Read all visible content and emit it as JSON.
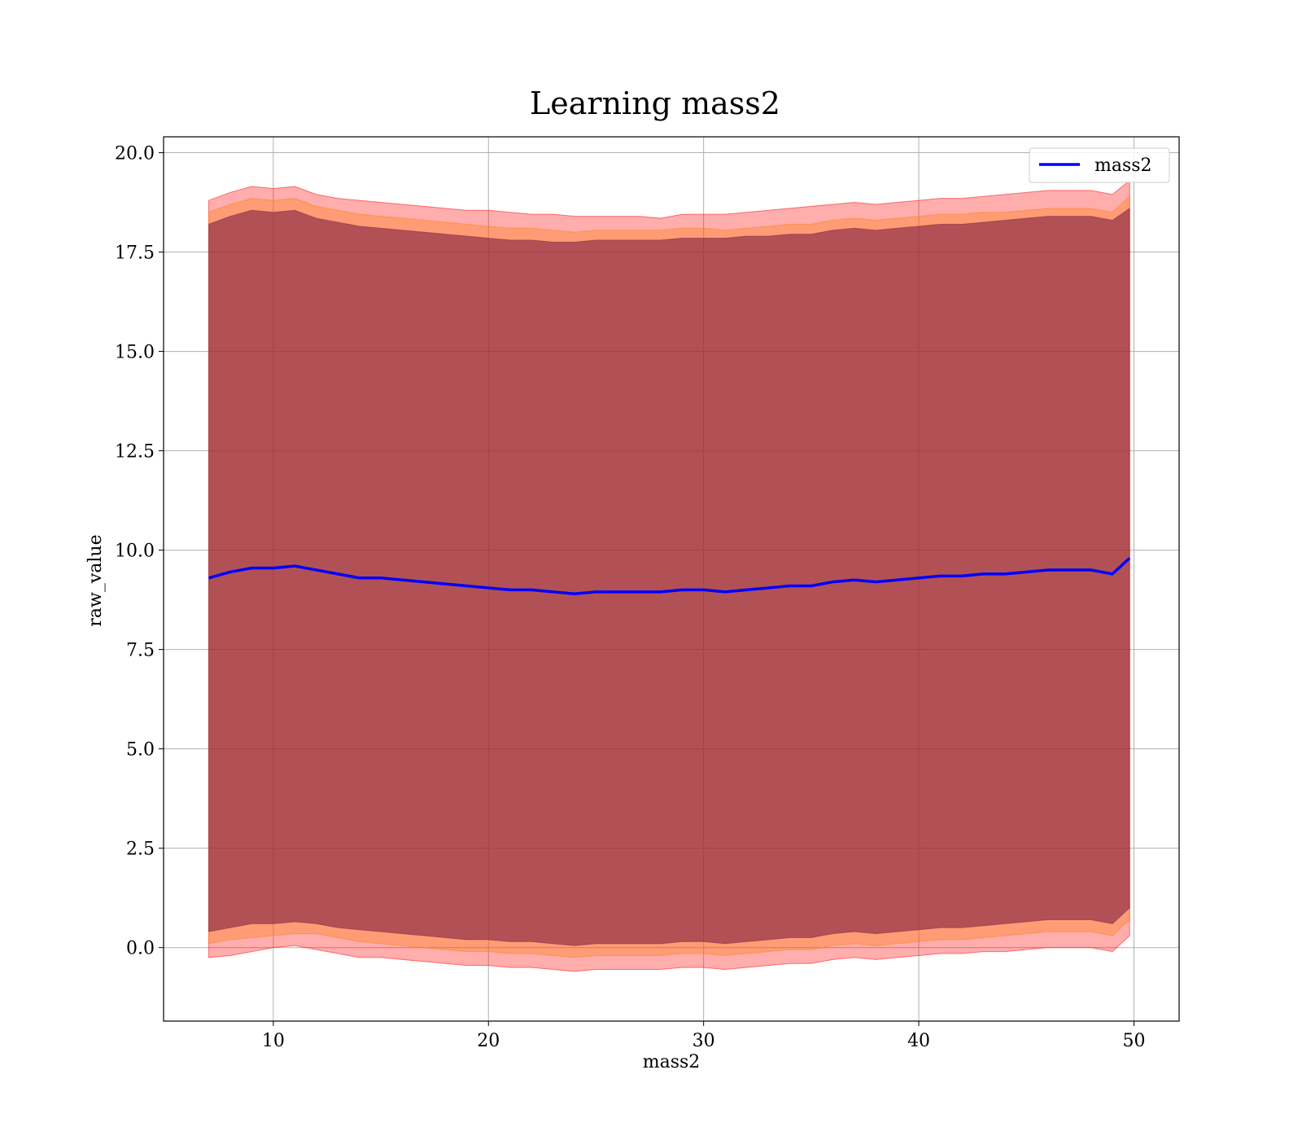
{
  "chart_data": {
    "type": "line",
    "title": "Learning mass2",
    "xlabel": "mass2",
    "ylabel": "raw_value",
    "xlim": [
      4.9,
      52.1
    ],
    "ylim": [
      -1.85,
      20.4
    ],
    "xticks": [
      10,
      20,
      30,
      40,
      50
    ],
    "xtick_labels": [
      "10",
      "20",
      "30",
      "40",
      "50"
    ],
    "yticks": [
      0,
      2.5,
      5,
      7.5,
      10,
      12.5,
      15,
      17.5,
      20
    ],
    "ytick_labels": [
      "0.0",
      "2.5",
      "5.0",
      "7.5",
      "10.0",
      "12.5",
      "15.0",
      "17.5",
      "20.0"
    ],
    "grid": true,
    "legend": {
      "position": "top-right",
      "entries": [
        "mass2"
      ]
    },
    "colors": {
      "line": "#0000ff",
      "band_outer": "#ff0000",
      "band_middle": "#ff7f0e",
      "band_inner": "#7f2040"
    },
    "series": [
      {
        "name": "mass2",
        "x": [
          7,
          8,
          9,
          10,
          11,
          12,
          13,
          14,
          15,
          16,
          17,
          18,
          19,
          20,
          21,
          22,
          23,
          24,
          25,
          26,
          27,
          28,
          29,
          30,
          31,
          32,
          33,
          34,
          35,
          36,
          37,
          38,
          39,
          40,
          41,
          42,
          43,
          44,
          45,
          46,
          47,
          48,
          49,
          49.8
        ],
        "values": [
          9.3,
          9.45,
          9.55,
          9.55,
          9.6,
          9.5,
          9.4,
          9.3,
          9.3,
          9.25,
          9.2,
          9.15,
          9.1,
          9.05,
          9.0,
          9.0,
          8.95,
          8.9,
          8.95,
          8.95,
          8.95,
          8.95,
          9.0,
          9.0,
          8.95,
          9.0,
          9.05,
          9.1,
          9.1,
          9.2,
          9.25,
          9.2,
          9.25,
          9.3,
          9.35,
          9.35,
          9.4,
          9.4,
          9.45,
          9.5,
          9.5,
          9.5,
          9.4,
          9.8
        ]
      }
    ],
    "bands": [
      {
        "x": [
          7,
          8,
          9,
          10,
          11,
          12,
          13,
          14,
          15,
          16,
          17,
          18,
          19,
          20,
          21,
          22,
          23,
          24,
          25,
          26,
          27,
          28,
          29,
          30,
          31,
          32,
          33,
          34,
          35,
          36,
          37,
          38,
          39,
          40,
          41,
          42,
          43,
          44,
          45,
          46,
          47,
          48,
          49,
          49.8
        ],
        "upper": [
          18.8,
          19.0,
          19.15,
          19.1,
          19.15,
          18.95,
          18.85,
          18.8,
          18.75,
          18.7,
          18.65,
          18.6,
          18.55,
          18.55,
          18.5,
          18.45,
          18.45,
          18.4,
          18.4,
          18.4,
          18.4,
          18.35,
          18.45,
          18.45,
          18.45,
          18.5,
          18.55,
          18.6,
          18.65,
          18.7,
          18.75,
          18.7,
          18.75,
          18.8,
          18.85,
          18.85,
          18.9,
          18.95,
          19.0,
          19.05,
          19.05,
          19.05,
          18.95,
          19.3
        ],
        "lower": [
          -0.25,
          -0.2,
          -0.1,
          0.0,
          0.05,
          -0.05,
          -0.15,
          -0.25,
          -0.25,
          -0.3,
          -0.35,
          -0.4,
          -0.45,
          -0.45,
          -0.5,
          -0.5,
          -0.55,
          -0.6,
          -0.55,
          -0.55,
          -0.55,
          -0.55,
          -0.5,
          -0.5,
          -0.55,
          -0.5,
          -0.45,
          -0.4,
          -0.4,
          -0.3,
          -0.25,
          -0.3,
          -0.25,
          -0.2,
          -0.15,
          -0.15,
          -0.1,
          -0.1,
          -0.05,
          0.0,
          0.0,
          0.0,
          -0.1,
          0.3
        ]
      },
      {
        "x": [
          7,
          8,
          9,
          10,
          11,
          12,
          13,
          14,
          15,
          16,
          17,
          18,
          19,
          20,
          21,
          22,
          23,
          24,
          25,
          26,
          27,
          28,
          29,
          30,
          31,
          32,
          33,
          34,
          35,
          36,
          37,
          38,
          39,
          40,
          41,
          42,
          43,
          44,
          45,
          46,
          47,
          48,
          49,
          49.8
        ],
        "upper": [
          18.5,
          18.7,
          18.85,
          18.8,
          18.85,
          18.65,
          18.55,
          18.45,
          18.4,
          18.35,
          18.3,
          18.25,
          18.2,
          18.15,
          18.1,
          18.1,
          18.05,
          18.0,
          18.05,
          18.05,
          18.05,
          18.05,
          18.1,
          18.1,
          18.05,
          18.1,
          18.15,
          18.2,
          18.2,
          18.3,
          18.35,
          18.3,
          18.35,
          18.4,
          18.45,
          18.45,
          18.5,
          18.5,
          18.55,
          18.6,
          18.6,
          18.6,
          18.5,
          18.9
        ],
        "lower": [
          0.1,
          0.2,
          0.25,
          0.3,
          0.35,
          0.35,
          0.25,
          0.15,
          0.1,
          0.05,
          0.0,
          -0.05,
          -0.1,
          -0.1,
          -0.15,
          -0.15,
          -0.2,
          -0.25,
          -0.2,
          -0.2,
          -0.2,
          -0.2,
          -0.15,
          -0.15,
          -0.2,
          -0.15,
          -0.1,
          -0.05,
          -0.05,
          0.05,
          0.1,
          0.05,
          0.1,
          0.15,
          0.2,
          0.2,
          0.25,
          0.3,
          0.35,
          0.4,
          0.4,
          0.4,
          0.3,
          0.7
        ]
      },
      {
        "x": [
          7,
          8,
          9,
          10,
          11,
          12,
          13,
          14,
          15,
          16,
          17,
          18,
          19,
          20,
          21,
          22,
          23,
          24,
          25,
          26,
          27,
          28,
          29,
          30,
          31,
          32,
          33,
          34,
          35,
          36,
          37,
          38,
          39,
          40,
          41,
          42,
          43,
          44,
          45,
          46,
          47,
          48,
          49,
          49.8
        ],
        "upper": [
          18.2,
          18.4,
          18.55,
          18.5,
          18.55,
          18.35,
          18.25,
          18.15,
          18.1,
          18.05,
          18.0,
          17.95,
          17.9,
          17.85,
          17.8,
          17.8,
          17.75,
          17.75,
          17.8,
          17.8,
          17.8,
          17.8,
          17.85,
          17.85,
          17.85,
          17.9,
          17.9,
          17.95,
          17.95,
          18.05,
          18.1,
          18.05,
          18.1,
          18.15,
          18.2,
          18.2,
          18.25,
          18.3,
          18.35,
          18.4,
          18.4,
          18.4,
          18.3,
          18.6
        ],
        "lower": [
          0.4,
          0.5,
          0.6,
          0.6,
          0.65,
          0.6,
          0.5,
          0.45,
          0.4,
          0.35,
          0.3,
          0.25,
          0.2,
          0.2,
          0.15,
          0.15,
          0.1,
          0.05,
          0.1,
          0.1,
          0.1,
          0.1,
          0.15,
          0.15,
          0.1,
          0.15,
          0.2,
          0.25,
          0.25,
          0.35,
          0.4,
          0.35,
          0.4,
          0.45,
          0.5,
          0.5,
          0.55,
          0.6,
          0.65,
          0.7,
          0.7,
          0.7,
          0.6,
          1.0
        ]
      }
    ]
  }
}
